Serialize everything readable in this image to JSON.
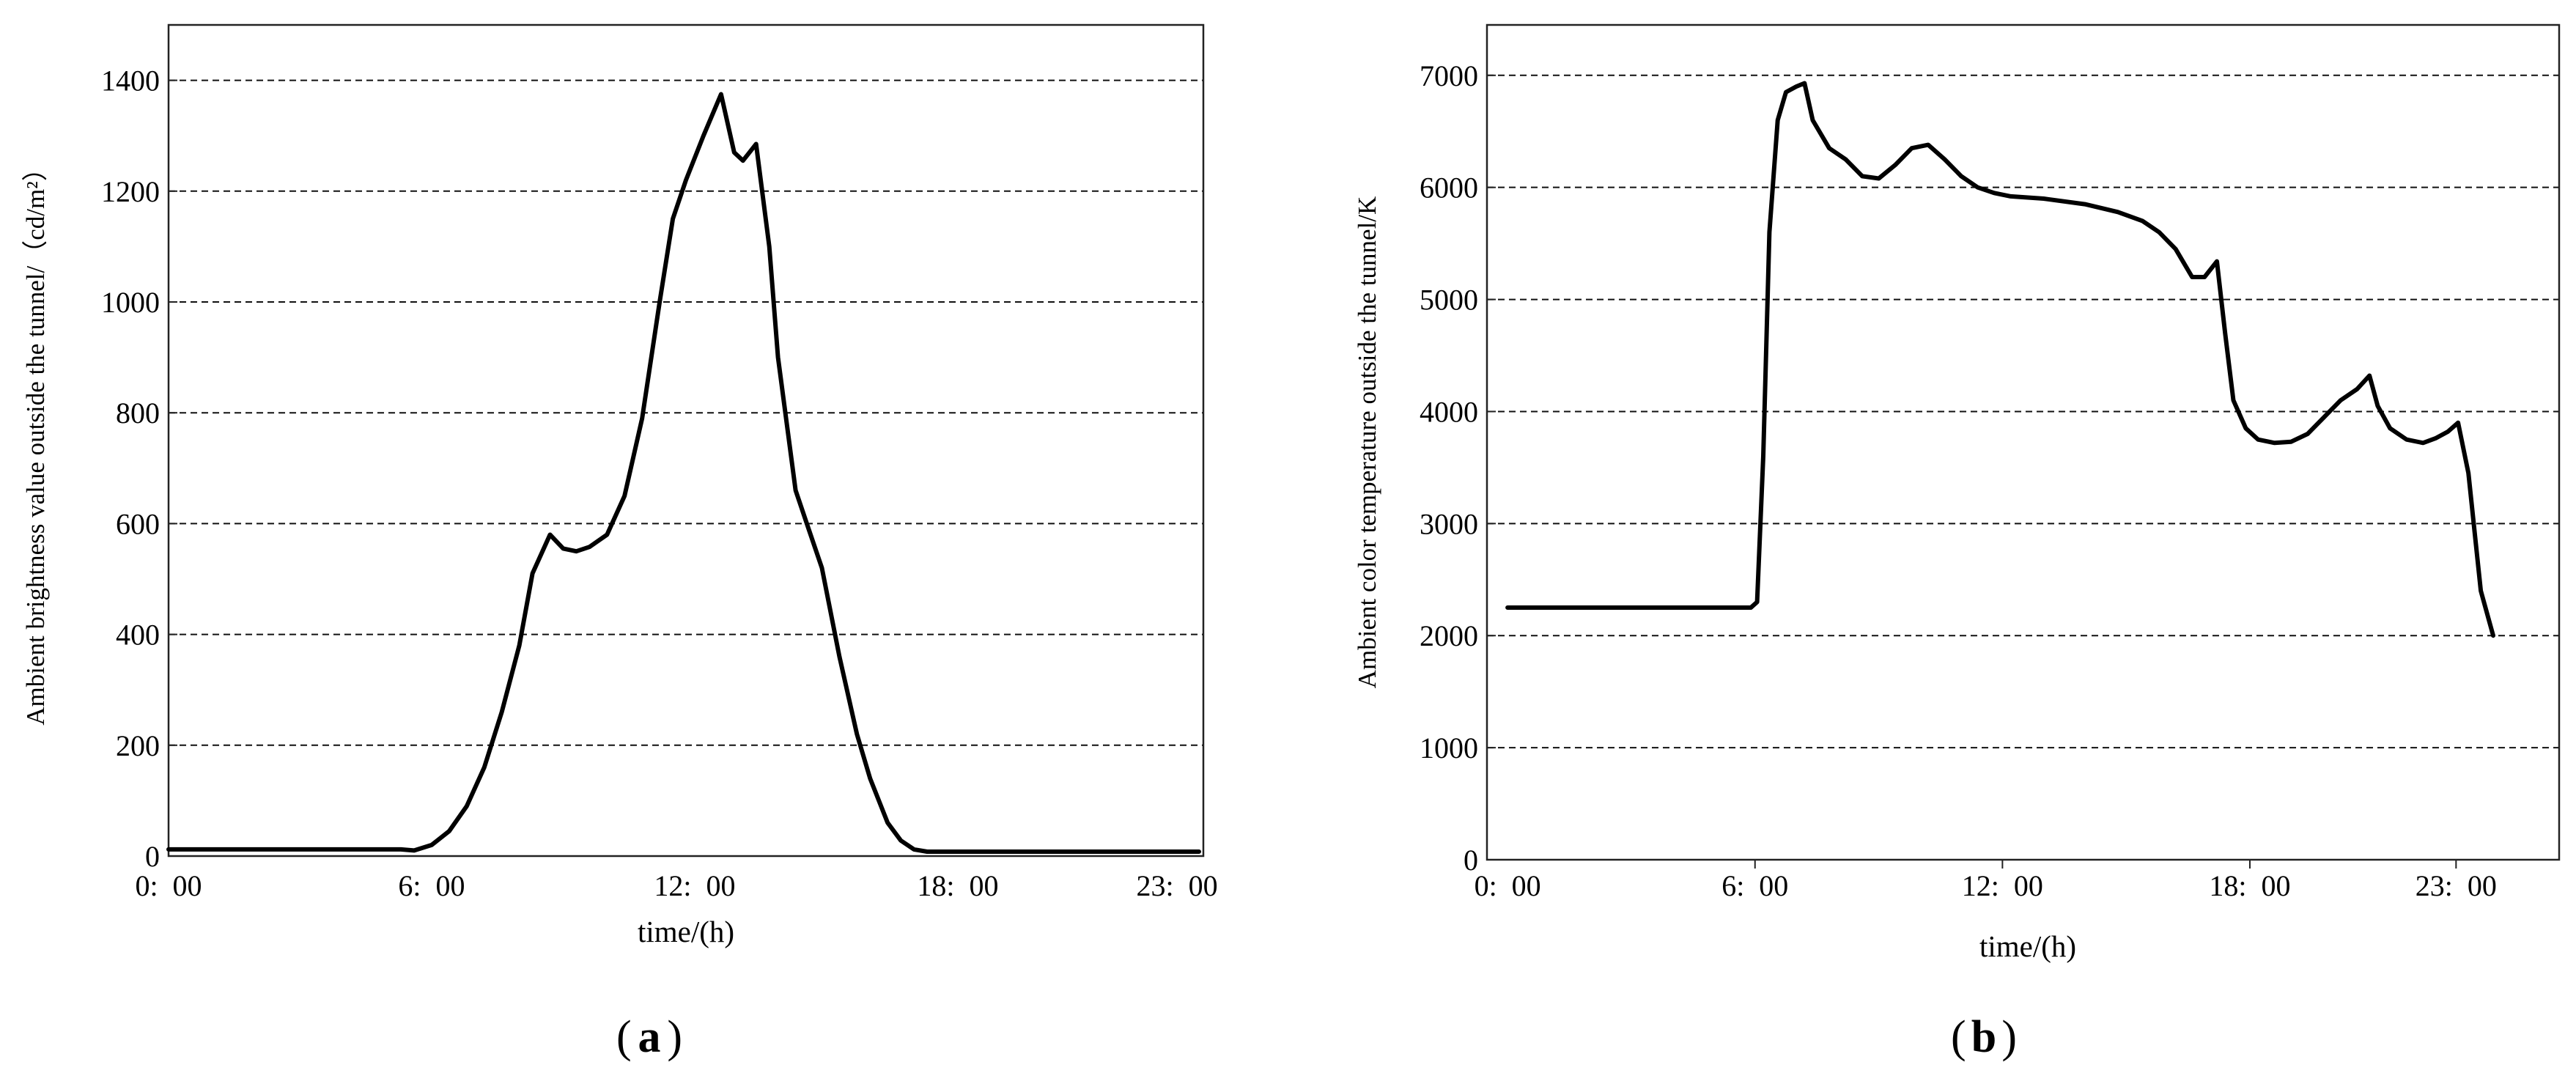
{
  "chart_data": [
    {
      "type": "line",
      "panel": "a",
      "caption_open": "(",
      "caption_letter": "a",
      "caption_close": ")",
      "xlabel": "time/(h)",
      "ylabel": "Ambient brightness value outside the tunnel/（cd/m²）",
      "xlim": [
        0,
        23.6
      ],
      "ylim": [
        0,
        1500
      ],
      "grid": true,
      "x_tick_labels": [
        {
          "x": 0,
          "label": "0:  00"
        },
        {
          "x": 6,
          "label": "6:  00"
        },
        {
          "x": 12,
          "label": "12:  00"
        },
        {
          "x": 18,
          "label": "18:  00"
        },
        {
          "x": 23,
          "label": "23:  00"
        }
      ],
      "y_ticks": [
        0,
        200,
        400,
        600,
        800,
        1000,
        1200,
        1400
      ],
      "y_tick_labels": [
        "0",
        "200",
        "400",
        "600",
        "800",
        "1000",
        "1200",
        "1400"
      ],
      "gridlines": [
        200,
        400,
        600,
        800,
        1000,
        1200,
        1400
      ],
      "series": [
        {
          "x": [
            0,
            5.3,
            5.6,
            6.0,
            6.4,
            6.8,
            7.2,
            7.6,
            8.0,
            8.3,
            8.7,
            9.0,
            9.3,
            9.6,
            10.0,
            10.4,
            10.8,
            11.2,
            11.5,
            11.8,
            12.2,
            12.6,
            12.9,
            13.1,
            13.4,
            13.7,
            13.9,
            14.3,
            14.6,
            14.9,
            15.3,
            15.7,
            16.0,
            16.4,
            16.7,
            17.0,
            17.3,
            17.6,
            17.8,
            18.0,
            19.0,
            21.0,
            23.5
          ],
          "y": [
            12,
            12,
            10,
            20,
            45,
            90,
            160,
            260,
            380,
            510,
            580,
            555,
            550,
            558,
            580,
            650,
            790,
            1000,
            1150,
            1220,
            1300,
            1375,
            1270,
            1255,
            1285,
            1100,
            900,
            660,
            590,
            520,
            360,
            220,
            140,
            60,
            28,
            12,
            8,
            8,
            8,
            8,
            8,
            8,
            8
          ]
        }
      ]
    },
    {
      "type": "line",
      "panel": "b",
      "caption_open": "(",
      "caption_letter": "b",
      "caption_close": ")",
      "xlabel": "time/(h)",
      "ylabel": "Ambient color temperature outside the tunnel/K",
      "xlim": [
        -0.5,
        25.5
      ],
      "ylim": [
        0,
        7450
      ],
      "grid": true,
      "x_tick_labels": [
        {
          "x": 0,
          "label": "0:  00"
        },
        {
          "x": 6,
          "label": "6:  00"
        },
        {
          "x": 12,
          "label": "12:  00"
        },
        {
          "x": 18,
          "label": "18:  00"
        },
        {
          "x": 23,
          "label": "23:  00"
        }
      ],
      "x_tickmarks": [
        6,
        12,
        18,
        23
      ],
      "y_ticks": [
        0,
        1000,
        2000,
        3000,
        4000,
        5000,
        6000,
        7000
      ],
      "y_tick_labels": [
        "0",
        "1000",
        "2000",
        "3000",
        "4000",
        "5000",
        "6000",
        "7000"
      ],
      "gridlines": [
        2000,
        3000,
        4000,
        5000,
        6000,
        7000
      ],
      "grid_solid": [
        1000
      ],
      "series": [
        {
          "x": [
            0,
            5.9,
            6.05,
            6.2,
            6.35,
            6.55,
            6.75,
            7.0,
            7.2,
            7.4,
            7.8,
            8.2,
            8.6,
            9.0,
            9.4,
            9.8,
            10.2,
            10.6,
            11.0,
            11.4,
            11.8,
            12.2,
            13.0,
            14.0,
            14.8,
            15.4,
            15.8,
            16.2,
            16.6,
            16.9,
            17.2,
            17.4,
            17.6,
            17.9,
            18.2,
            18.6,
            19.0,
            19.4,
            19.8,
            20.2,
            20.6,
            20.9,
            21.1,
            21.4,
            21.8,
            22.2,
            22.5,
            22.8,
            23.05,
            23.3,
            23.6,
            23.9
          ],
          "y": [
            2250,
            2250,
            2300,
            3600,
            5600,
            6600,
            6850,
            6900,
            6930,
            6600,
            6350,
            6250,
            6100,
            6080,
            6200,
            6350,
            6380,
            6250,
            6100,
            6000,
            5950,
            5920,
            5900,
            5850,
            5780,
            5700,
            5600,
            5450,
            5200,
            5200,
            5340,
            4700,
            4100,
            3850,
            3750,
            3720,
            3730,
            3800,
            3950,
            4100,
            4200,
            4320,
            4050,
            3850,
            3750,
            3720,
            3760,
            3820,
            3900,
            3450,
            2400,
            2000
          ]
        }
      ]
    }
  ]
}
